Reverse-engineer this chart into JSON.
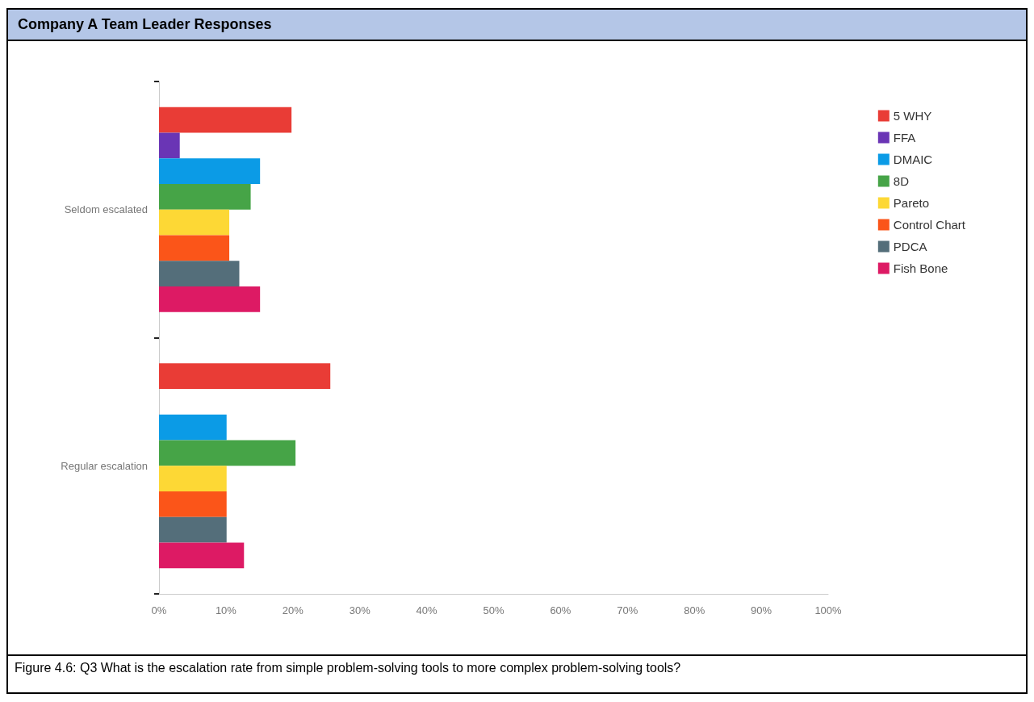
{
  "chart_data": {
    "type": "bar",
    "orientation": "horizontal",
    "title": "Company A Team Leader Responses",
    "categories": [
      "Seldom escalated",
      "Regular escalation"
    ],
    "series": [
      {
        "name": "5 WHY",
        "color": "#e93c36",
        "values": [
          19.8,
          25.6
        ]
      },
      {
        "name": "FFA",
        "color": "#6a35b5",
        "values": [
          3.1,
          0
        ]
      },
      {
        "name": "DMAIC",
        "color": "#0b9be6",
        "values": [
          15.1,
          10.1
        ]
      },
      {
        "name": "8D",
        "color": "#46a447",
        "values": [
          13.7,
          20.4
        ]
      },
      {
        "name": "Pareto",
        "color": "#fdd835",
        "values": [
          10.5,
          10.1
        ]
      },
      {
        "name": "Control Chart",
        "color": "#fb5519",
        "values": [
          10.5,
          10.1
        ]
      },
      {
        "name": "PDCA",
        "color": "#546e7a",
        "values": [
          12.0,
          10.1
        ]
      },
      {
        "name": "Fish Bone",
        "color": "#dd1a64",
        "values": [
          15.1,
          12.7
        ]
      }
    ],
    "xlim": [
      0,
      100
    ],
    "xticks": [
      {
        "value": 0,
        "label": "0%"
      },
      {
        "value": 10,
        "label": "10%"
      },
      {
        "value": 20,
        "label": "20%"
      },
      {
        "value": 30,
        "label": "30%"
      },
      {
        "value": 40,
        "label": "40%"
      },
      {
        "value": 50,
        "label": "50%"
      },
      {
        "value": 60,
        "label": "60%"
      },
      {
        "value": 70,
        "label": "70%"
      },
      {
        "value": 80,
        "label": "80%"
      },
      {
        "value": 90,
        "label": "90%"
      },
      {
        "value": 100,
        "label": "100%"
      }
    ],
    "grid": false,
    "legend": "top right",
    "annotations": [
      "Figure 4.6: Q3 What is the escalation rate from simple problem-solving tools to more complex problem-solving tools?"
    ]
  }
}
